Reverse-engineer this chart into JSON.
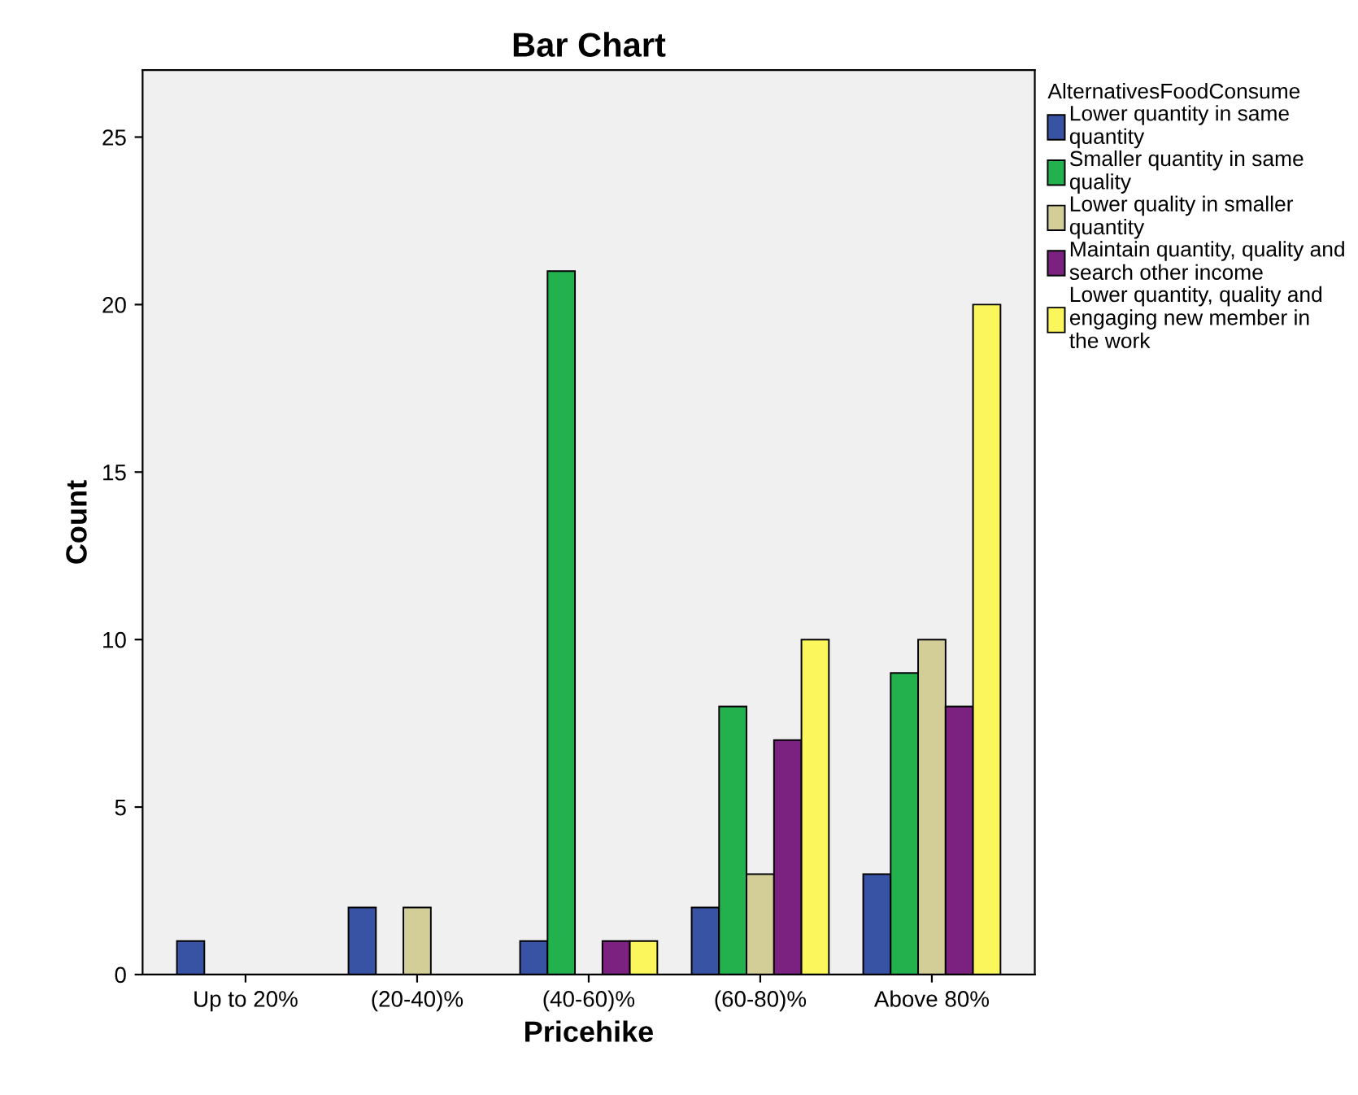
{
  "chart_data": {
    "type": "bar",
    "title": "Bar Chart",
    "xlabel": "Pricehike",
    "ylabel": "Count",
    "legend_title": "AlternativesFoodConsume",
    "categories": [
      "Up to 20%",
      "(20-40)%",
      "(40-60)%",
      "(60-80)%",
      "Above 80%"
    ],
    "series": [
      {
        "name": "Lower quantity in same\nquantity",
        "color": "#3953a4",
        "values": [
          1,
          2,
          1,
          2,
          3
        ]
      },
      {
        "name": "Smaller quantity in same\nquality",
        "color": "#22b14c",
        "values": [
          null,
          null,
          21,
          8,
          9
        ]
      },
      {
        "name": "Lower quality in smaller\nquantity",
        "color": "#d3ce97",
        "values": [
          null,
          2,
          null,
          3,
          10
        ]
      },
      {
        "name": "Maintain quantity, quality and\nsearch other income",
        "color": "#7b2281",
        "values": [
          null,
          null,
          1,
          7,
          8
        ]
      },
      {
        "name": "Lower quantity, quality and\nengaging new member in\nthe work",
        "color": "#fbf65c",
        "values": [
          null,
          null,
          1,
          10,
          20
        ]
      }
    ],
    "ylim": [
      0,
      27
    ],
    "yticks": [
      0,
      5,
      10,
      15,
      20,
      25
    ],
    "grid": false,
    "legend": "right"
  }
}
